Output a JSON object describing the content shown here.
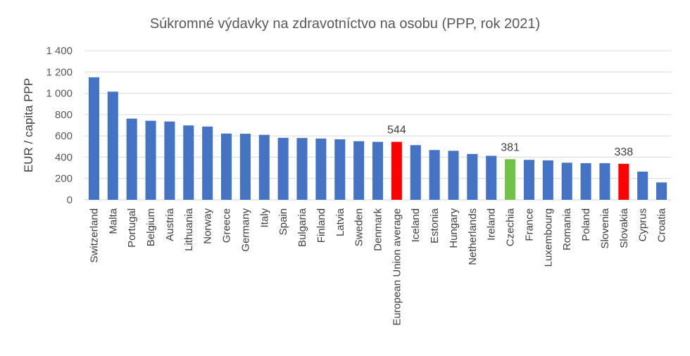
{
  "chart_data": {
    "type": "bar",
    "title": "Súkromné výdavky na zdravotníctvo na osobu (PPP, rok 2021)",
    "ylabel": "EUR / capita PPP",
    "xlabel": "",
    "ylim": [
      0,
      1400
    ],
    "yticks": [
      0,
      200,
      400,
      600,
      800,
      1000,
      1200,
      1400
    ],
    "ytick_labels": [
      "0",
      "200",
      "400",
      "600",
      "800",
      "1 000",
      "1 200",
      "1 400"
    ],
    "grid": true,
    "legend": "none",
    "categories": [
      "Switzerland",
      "Malta",
      "Portugal",
      "Belgium",
      "Austria",
      "Lithuania",
      "Norway",
      "Greece",
      "Germany",
      "Italy",
      "Spain",
      "Bulgaria",
      "Finland",
      "Latvia",
      "Sweden",
      "Denmark",
      "European Union average",
      "Iceland",
      "Estonia",
      "Hungary",
      "Netherlands",
      "Ireland",
      "Czechia",
      "France",
      "Luxembourg",
      "Romania",
      "Poland",
      "Slovenia",
      "Slovakia",
      "Cyprus",
      "Croatia"
    ],
    "values": [
      1150,
      1015,
      762,
      742,
      735,
      698,
      688,
      622,
      620,
      610,
      582,
      580,
      575,
      568,
      550,
      544,
      544,
      513,
      467,
      460,
      430,
      413,
      381,
      375,
      370,
      348,
      344,
      344,
      338,
      265,
      163
    ],
    "colors": {
      "default": "#4472c4",
      "European Union average": "#ff0000",
      "Slovakia": "#ff0000",
      "Czechia": "#70c248"
    },
    "data_labels": [
      {
        "category": "European Union average",
        "text": "544"
      },
      {
        "category": "Czechia",
        "text": "381"
      },
      {
        "category": "Slovakia",
        "text": "338"
      }
    ]
  }
}
